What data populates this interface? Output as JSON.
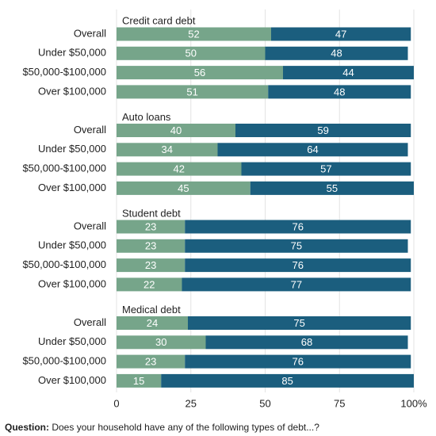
{
  "chart_data": {
    "type": "bar",
    "orientation": "horizontal",
    "stacked": true,
    "grid": true,
    "xlim": [
      0,
      100
    ],
    "xticks": [
      0,
      25,
      50,
      75,
      {
        "value": 100,
        "label": "100%"
      }
    ],
    "groups": [
      {
        "title": "Credit card debt",
        "categories": [
          "Overall",
          "Under $50,000",
          "$50,000-$100,000",
          "Over $100,000"
        ],
        "series": [
          {
            "color": "#76a58a",
            "values": [
              52,
              50,
              56,
              51
            ]
          },
          {
            "color": "#1b5e7e",
            "values": [
              47,
              48,
              44,
              48
            ]
          }
        ]
      },
      {
        "title": "Auto loans",
        "categories": [
          "Overall",
          "Under $50,000",
          "$50,000-$100,000",
          "Over $100,000"
        ],
        "series": [
          {
            "color": "#76a58a",
            "values": [
              40,
              34,
              42,
              45
            ]
          },
          {
            "color": "#1b5e7e",
            "values": [
              59,
              64,
              57,
              55
            ]
          }
        ]
      },
      {
        "title": "Student debt",
        "categories": [
          "Overall",
          "Under $50,000",
          "$50,000-$100,000",
          "Over $100,000"
        ],
        "series": [
          {
            "color": "#76a58a",
            "values": [
              23,
              23,
              23,
              22
            ]
          },
          {
            "color": "#1b5e7e",
            "values": [
              76,
              75,
              76,
              77
            ]
          }
        ]
      },
      {
        "title": "Medical debt",
        "categories": [
          "Overall",
          "Under $50,000",
          "$50,000-$100,000",
          "Over $100,000"
        ],
        "series": [
          {
            "color": "#76a58a",
            "values": [
              24,
              30,
              23,
              15
            ]
          },
          {
            "color": "#1b5e7e",
            "values": [
              75,
              68,
              76,
              85
            ]
          }
        ]
      }
    ],
    "question_label": "Question:",
    "question": "Does your household have any of the following types of debt...?"
  }
}
